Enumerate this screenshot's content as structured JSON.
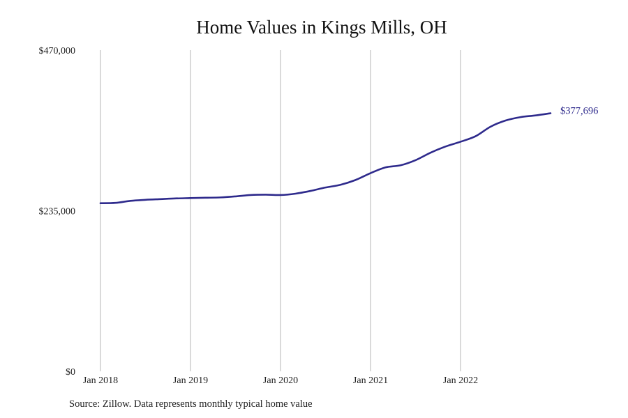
{
  "chart_data": {
    "type": "line",
    "title": "Home Values in Kings Mills, OH",
    "ylim": [
      0,
      470000
    ],
    "y_ticks": [
      {
        "value": 0,
        "label": "$0"
      },
      {
        "value": 235000,
        "label": "$235,000"
      },
      {
        "value": 470000,
        "label": "$470,000"
      }
    ],
    "x_ticks": [
      {
        "value": "2018-01",
        "label": "Jan 2018"
      },
      {
        "value": "2019-01",
        "label": "Jan 2019"
      },
      {
        "value": "2020-01",
        "label": "Jan 2020"
      },
      {
        "value": "2021-01",
        "label": "Jan 2021"
      },
      {
        "value": "2022-01",
        "label": "Jan 2022"
      }
    ],
    "grid": {
      "vertical": true,
      "horizontal": false
    },
    "series": [
      {
        "color": "#2e2a8c",
        "end_label": "$377,696",
        "points": [
          {
            "x": "2018-01",
            "y": 246000
          },
          {
            "x": "2018-03",
            "y": 246500
          },
          {
            "x": "2018-05",
            "y": 249500
          },
          {
            "x": "2018-07",
            "y": 251000
          },
          {
            "x": "2018-09",
            "y": 252000
          },
          {
            "x": "2018-11",
            "y": 253000
          },
          {
            "x": "2019-01",
            "y": 253500
          },
          {
            "x": "2019-03",
            "y": 254000
          },
          {
            "x": "2019-05",
            "y": 254500
          },
          {
            "x": "2019-07",
            "y": 256000
          },
          {
            "x": "2019-09",
            "y": 258000
          },
          {
            "x": "2019-11",
            "y": 258500
          },
          {
            "x": "2020-01",
            "y": 258000
          },
          {
            "x": "2020-03",
            "y": 260000
          },
          {
            "x": "2020-05",
            "y": 264000
          },
          {
            "x": "2020-07",
            "y": 269000
          },
          {
            "x": "2020-09",
            "y": 273000
          },
          {
            "x": "2020-11",
            "y": 280000
          },
          {
            "x": "2021-01",
            "y": 290000
          },
          {
            "x": "2021-03",
            "y": 298500
          },
          {
            "x": "2021-05",
            "y": 301500
          },
          {
            "x": "2021-07",
            "y": 309000
          },
          {
            "x": "2021-09",
            "y": 320000
          },
          {
            "x": "2021-11",
            "y": 329000
          },
          {
            "x": "2022-01",
            "y": 336000
          },
          {
            "x": "2022-03",
            "y": 344000
          },
          {
            "x": "2022-05",
            "y": 358000
          },
          {
            "x": "2022-07",
            "y": 367000
          },
          {
            "x": "2022-09",
            "y": 372000
          },
          {
            "x": "2022-11",
            "y": 374500
          },
          {
            "x": "2023-01",
            "y": 377696
          }
        ]
      }
    ]
  },
  "source_note": "Source: Zillow. Data represents monthly typical home value"
}
